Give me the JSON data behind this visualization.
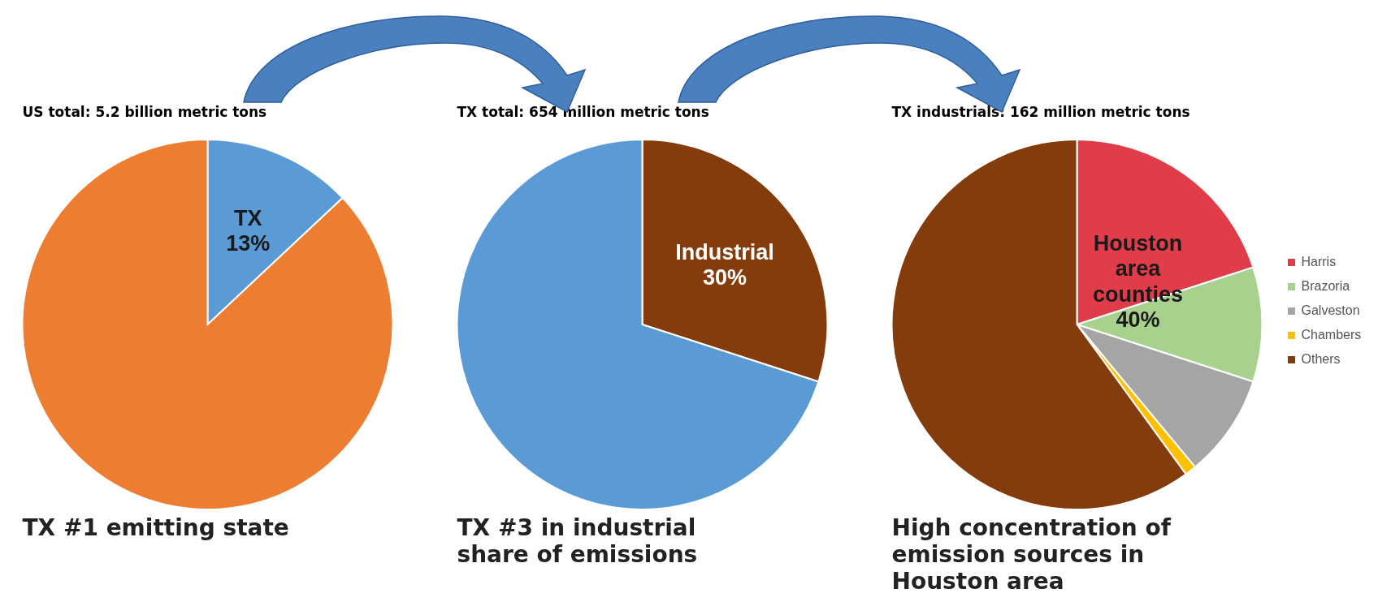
{
  "chart_data": [
    {
      "type": "pie",
      "title": "US total:  5.2 billion metric tons",
      "categories": [
        "TX",
        null
      ],
      "values": [
        13,
        87
      ],
      "colors": [
        "#5b9bd5",
        "#ed7d31"
      ],
      "value_labels": [
        "13%",
        null
      ],
      "annotations": [
        "TX #1 emitting state"
      ]
    },
    {
      "type": "pie",
      "title": "TX total:  654 million metric tons",
      "categories": [
        "Industrial",
        null
      ],
      "values": [
        30,
        70
      ],
      "colors": [
        "#843c0c",
        "#5b9bd5"
      ],
      "value_labels": [
        "30%",
        null
      ],
      "annotations": [
        "TX #3 in industrial share of emissions"
      ]
    },
    {
      "type": "pie",
      "title": "TX industrials:  162 million metric tons",
      "categories": [
        "Harris",
        "Brazoria",
        "Galveston",
        "Chambers",
        "Others"
      ],
      "values": [
        20,
        10,
        9,
        1,
        60
      ],
      "colors": [
        "#e03c4a",
        "#a9d18e",
        "#a5a5a5",
        "#ffc000",
        "#843c0c"
      ],
      "legend": "right",
      "annotations": [
        "Houston area counties 40%",
        "High concentration of emission sources in Houston area"
      ]
    }
  ]
}
